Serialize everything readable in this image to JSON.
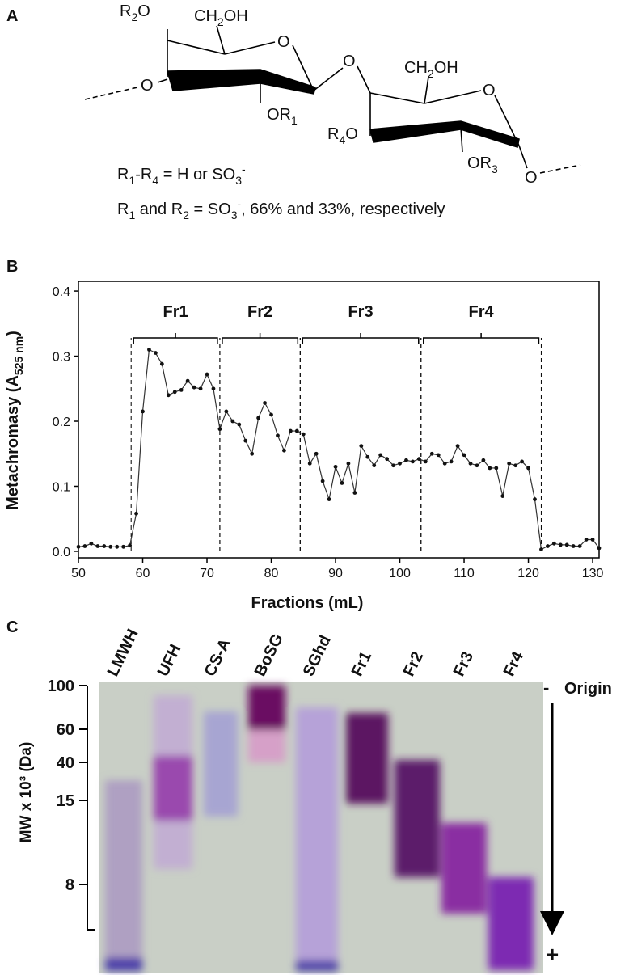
{
  "panels": {
    "a": "A",
    "b": "B",
    "c": "C"
  },
  "panel_a": {
    "r2o": [
      "R",
      "2",
      "O"
    ],
    "ch2oh_1": [
      "CH",
      "2",
      "OH"
    ],
    "ring_o_1": "O",
    "link_o": "O",
    "left_o": "O",
    "or1": [
      "OR",
      "1"
    ],
    "ch2oh_2": [
      "CH",
      "2",
      "OH"
    ],
    "ring_o_2": "O",
    "r4o": [
      "R",
      "4",
      "O"
    ],
    "or3": [
      "OR",
      "3"
    ],
    "right_o": "O",
    "caption_1": [
      "R",
      "1",
      "-R",
      "4",
      " = H or SO",
      "3",
      "-"
    ],
    "caption_2": [
      "R",
      "1",
      " and R",
      "2",
      " = SO",
      "3",
      "-",
      ", 66% and 33%, respectively"
    ]
  },
  "chart_data": {
    "type": "line",
    "xlabel": "Fractions (mL)",
    "ylabel": [
      "Metachromasy (A",
      "525 nm",
      ")"
    ],
    "xlim": [
      50,
      131
    ],
    "ylim": [
      -0.01,
      0.415
    ],
    "xticks": [
      50,
      60,
      70,
      80,
      90,
      100,
      110,
      120,
      130
    ],
    "yticks": [
      {
        "value": 0,
        "label": "0.0"
      },
      0.1,
      0.2,
      0.3,
      0.4
    ],
    "x": [
      50,
      51,
      52,
      53,
      54,
      55,
      56,
      57,
      58,
      59,
      60,
      61,
      62,
      63,
      64,
      65,
      66,
      67,
      68,
      69,
      70,
      71,
      72,
      73,
      74,
      75,
      76,
      77,
      78,
      79,
      80,
      81,
      82,
      83,
      84,
      85,
      86,
      87,
      88,
      89,
      90,
      91,
      92,
      93,
      94,
      95,
      96,
      97,
      98,
      99,
      100,
      101,
      102,
      103,
      104,
      105,
      106,
      107,
      108,
      109,
      110,
      111,
      112,
      113,
      114,
      115,
      116,
      117,
      118,
      119,
      120,
      121,
      122,
      123,
      124,
      125,
      126,
      127,
      128,
      129,
      130,
      131
    ],
    "series": [
      {
        "name": "Metachromasy",
        "color": "#333333",
        "values": [
          0.007,
          0.008,
          0.012,
          0.008,
          0.008,
          0.007,
          0.007,
          0.007,
          0.009,
          0.058,
          0.215,
          0.31,
          0.305,
          0.288,
          0.24,
          0.245,
          0.248,
          0.262,
          0.252,
          0.25,
          0.272,
          0.25,
          0.188,
          0.215,
          0.2,
          0.195,
          0.17,
          0.15,
          0.205,
          0.228,
          0.21,
          0.178,
          0.155,
          0.185,
          0.185,
          0.18,
          0.135,
          0.15,
          0.108,
          0.08,
          0.13,
          0.105,
          0.135,
          0.09,
          0.162,
          0.145,
          0.132,
          0.148,
          0.142,
          0.132,
          0.135,
          0.14,
          0.138,
          0.142,
          0.138,
          0.15,
          0.148,
          0.135,
          0.138,
          0.162,
          0.148,
          0.135,
          0.132,
          0.14,
          0.128,
          0.128,
          0.085,
          0.135,
          0.132,
          0.138,
          0.128,
          0.08,
          0.003,
          0.008,
          0.012,
          0.01,
          0.01,
          0.008,
          0.008,
          0.018,
          0.018,
          0.005
        ]
      }
    ],
    "regions": [
      {
        "name": "Fr1",
        "start": 58.2,
        "end": 72
      },
      {
        "name": "Fr2",
        "start": 72,
        "end": 84.5
      },
      {
        "name": "Fr3",
        "start": 84.5,
        "end": 103.3
      },
      {
        "name": "Fr4",
        "start": 103.3,
        "end": 122
      }
    ]
  },
  "panel_c": {
    "lanes": [
      "LMWH",
      "UFH",
      "CS-A",
      "BoSG",
      "SGhd",
      "Fr1",
      "Fr2",
      "Fr3",
      "Fr4"
    ],
    "mw_label": "MW x 10³ (Da)",
    "mw_ticks": [
      100,
      60,
      40,
      15,
      8
    ],
    "minus": "-",
    "origin": "Origin",
    "plus": "+"
  }
}
